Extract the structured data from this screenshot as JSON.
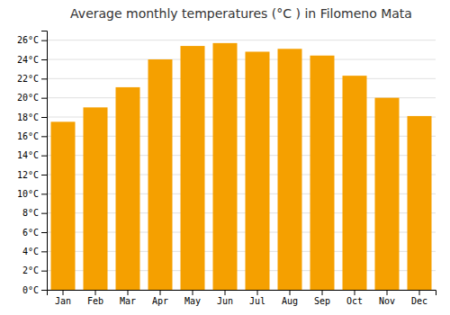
{
  "chart_data": {
    "type": "bar",
    "title": "Average monthly temperatures (°C ) in Filomeno Mata",
    "categories": [
      "Jan",
      "Feb",
      "Mar",
      "Apr",
      "May",
      "Jun",
      "Jul",
      "Aug",
      "Sep",
      "Oct",
      "Nov",
      "Dec"
    ],
    "values": [
      17.5,
      19.0,
      21.1,
      24.0,
      25.4,
      25.7,
      24.8,
      25.1,
      24.4,
      22.3,
      20.0,
      18.1
    ],
    "color": "#F5A000",
    "ylim": [
      0,
      27
    ],
    "yticks": [
      {
        "value": 0,
        "label": "0°C"
      },
      {
        "value": 2,
        "label": "2°C"
      },
      {
        "value": 4,
        "label": "4°C"
      },
      {
        "value": 6,
        "label": "6°C"
      },
      {
        "value": 8,
        "label": "8°C"
      },
      {
        "value": 10,
        "label": "10°C"
      },
      {
        "value": 12,
        "label": "12°C"
      },
      {
        "value": 14,
        "label": "14°C"
      },
      {
        "value": 16,
        "label": "16°C"
      },
      {
        "value": 18,
        "label": "18°C"
      },
      {
        "value": 20,
        "label": "20°C"
      },
      {
        "value": 22,
        "label": "22°C"
      },
      {
        "value": 24,
        "label": "24°C"
      },
      {
        "value": 26,
        "label": "26°C"
      }
    ],
    "grid": true
  }
}
